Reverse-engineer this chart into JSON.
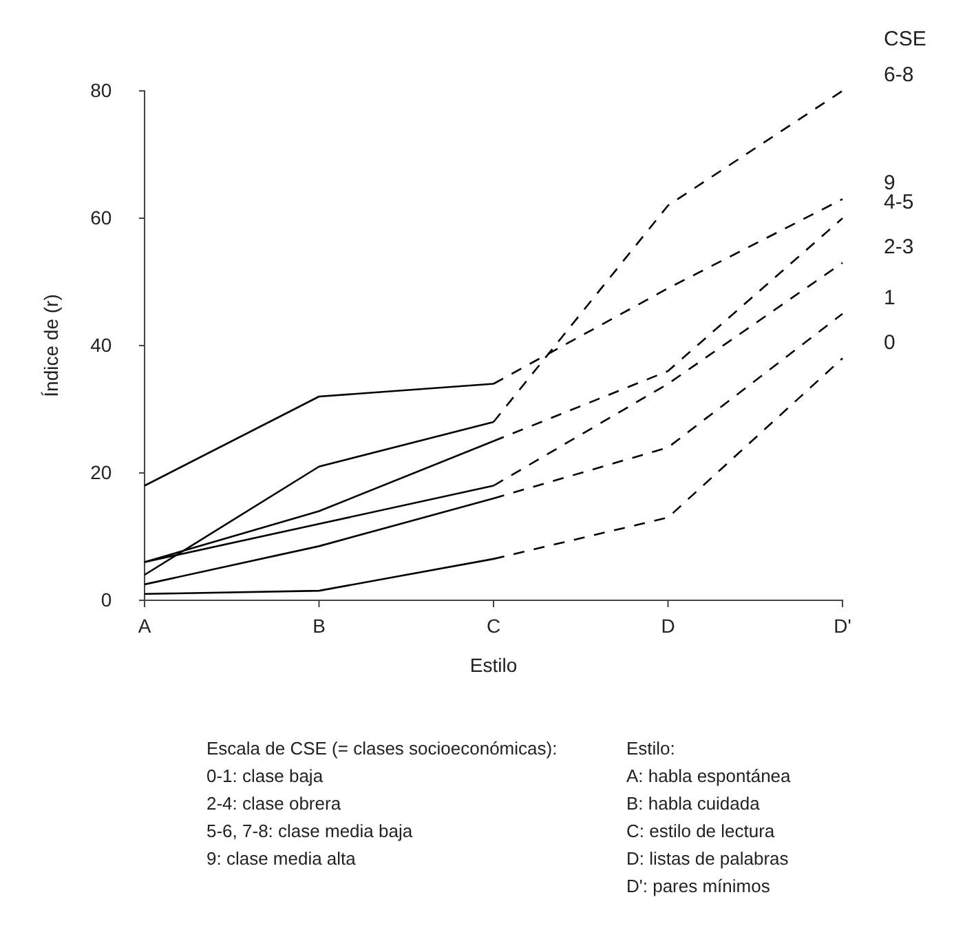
{
  "chart_data": {
    "type": "line",
    "xlabel": "Estilo",
    "ylabel": "Índice de (r)",
    "legend_title": "CSE",
    "categories": [
      "A",
      "B",
      "C",
      "D",
      "D'"
    ],
    "ylim": [
      0,
      80
    ],
    "yticks": [
      0,
      20,
      40,
      60,
      80
    ],
    "grid": false,
    "marker": "none",
    "series": [
      {
        "color": "#000000",
        "line_style": "solid",
        "values": [
          18,
          32,
          34,
          null,
          null
        ]
      },
      {
        "name": "9",
        "color": "#000000",
        "line_style": "dashed",
        "values": [
          null,
          null,
          34,
          49,
          63
        ]
      },
      {
        "color": "#000000",
        "line_style": "solid",
        "values": [
          4,
          21,
          28,
          null,
          null
        ]
      },
      {
        "name": "6-8",
        "color": "#000000",
        "line_style": "dashed",
        "values": [
          null,
          null,
          28,
          62,
          80
        ]
      },
      {
        "color": "#000000",
        "line_style": "solid",
        "values": [
          6,
          14,
          25,
          null,
          null
        ]
      },
      {
        "name": "4-5",
        "color": "#000000",
        "line_style": "dashed",
        "values": [
          null,
          null,
          25,
          36,
          60
        ]
      },
      {
        "color": "#000000",
        "line_style": "solid",
        "values": [
          6,
          12,
          18,
          null,
          null
        ]
      },
      {
        "name": "2-3",
        "color": "#000000",
        "line_style": "dashed",
        "values": [
          null,
          null,
          18,
          34,
          53
        ]
      },
      {
        "color": "#000000",
        "line_style": "solid",
        "values": [
          2.5,
          8.5,
          16,
          null,
          null
        ]
      },
      {
        "name": "1",
        "color": "#000000",
        "line_style": "dashed",
        "values": [
          null,
          null,
          16,
          24,
          45
        ]
      },
      {
        "color": "#000000",
        "line_style": "solid",
        "values": [
          1,
          1.5,
          6.5,
          null,
          null
        ]
      },
      {
        "name": "0",
        "color": "#000000",
        "line_style": "dashed",
        "values": [
          null,
          null,
          6.5,
          13,
          38
        ]
      }
    ],
    "annotations": [
      "Escala de CSE (= clases socioeconómicas):\n0-1: clase baja\n2-4: clase obrera\n5-6, 7-8: clase media baja\n9: clase media alta",
      "Estilo:\nA: habla espontánea\nB: habla cuidada\nC: estilo de lectura\nD: listas de palabras\nD': pares mínimos"
    ]
  }
}
